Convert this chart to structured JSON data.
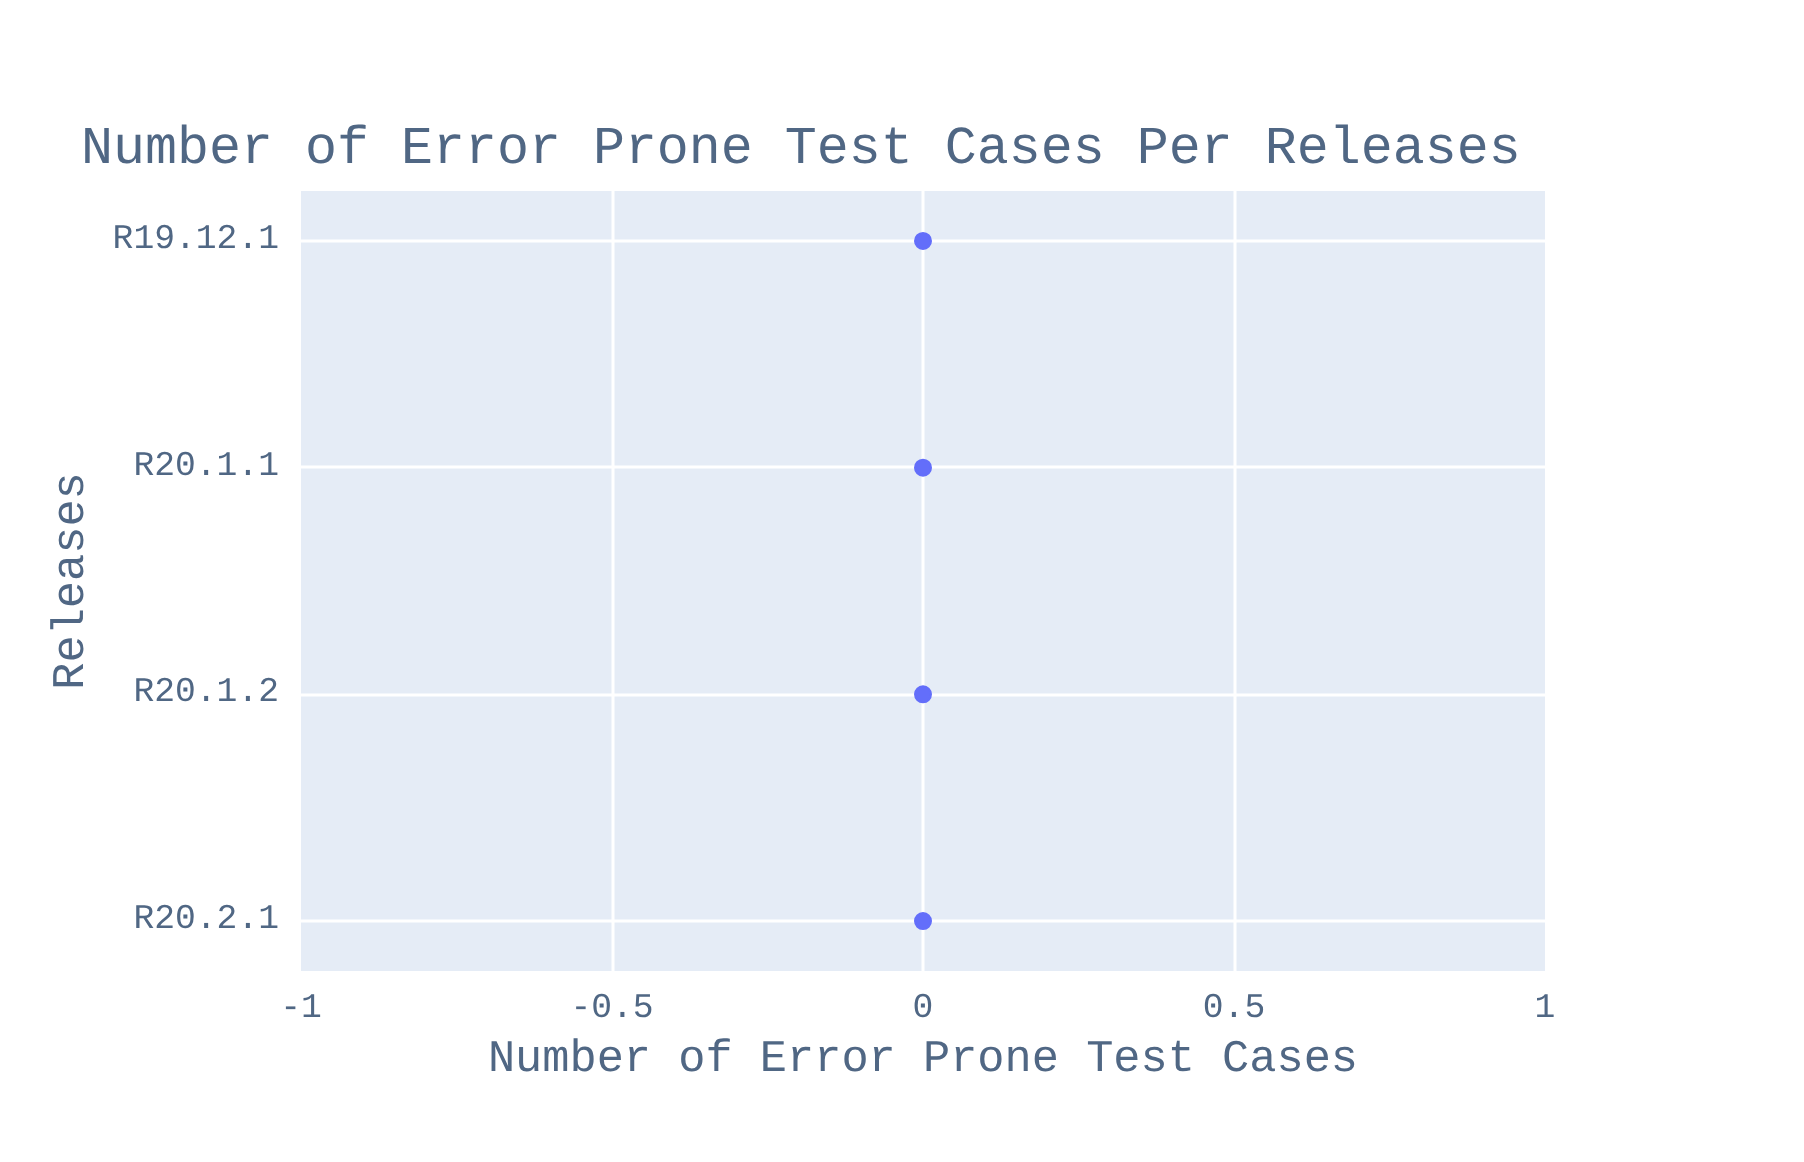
{
  "chart_data": {
    "type": "scatter",
    "title": "Number of Error Prone Test Cases Per Releases",
    "xlabel": "Number of Error Prone Test Cases",
    "ylabel": "Releases",
    "orientation": "horizontal",
    "categories": [
      "R19.12.1",
      "R20.1.1",
      "R20.1.2",
      "R20.2.1"
    ],
    "values": [
      0,
      0,
      0,
      0
    ],
    "color": "#636efa",
    "xlim": [
      -1,
      1
    ],
    "xticks": [
      -1,
      -0.5,
      0,
      0.5,
      1
    ],
    "grid": true,
    "marker": "circle"
  }
}
